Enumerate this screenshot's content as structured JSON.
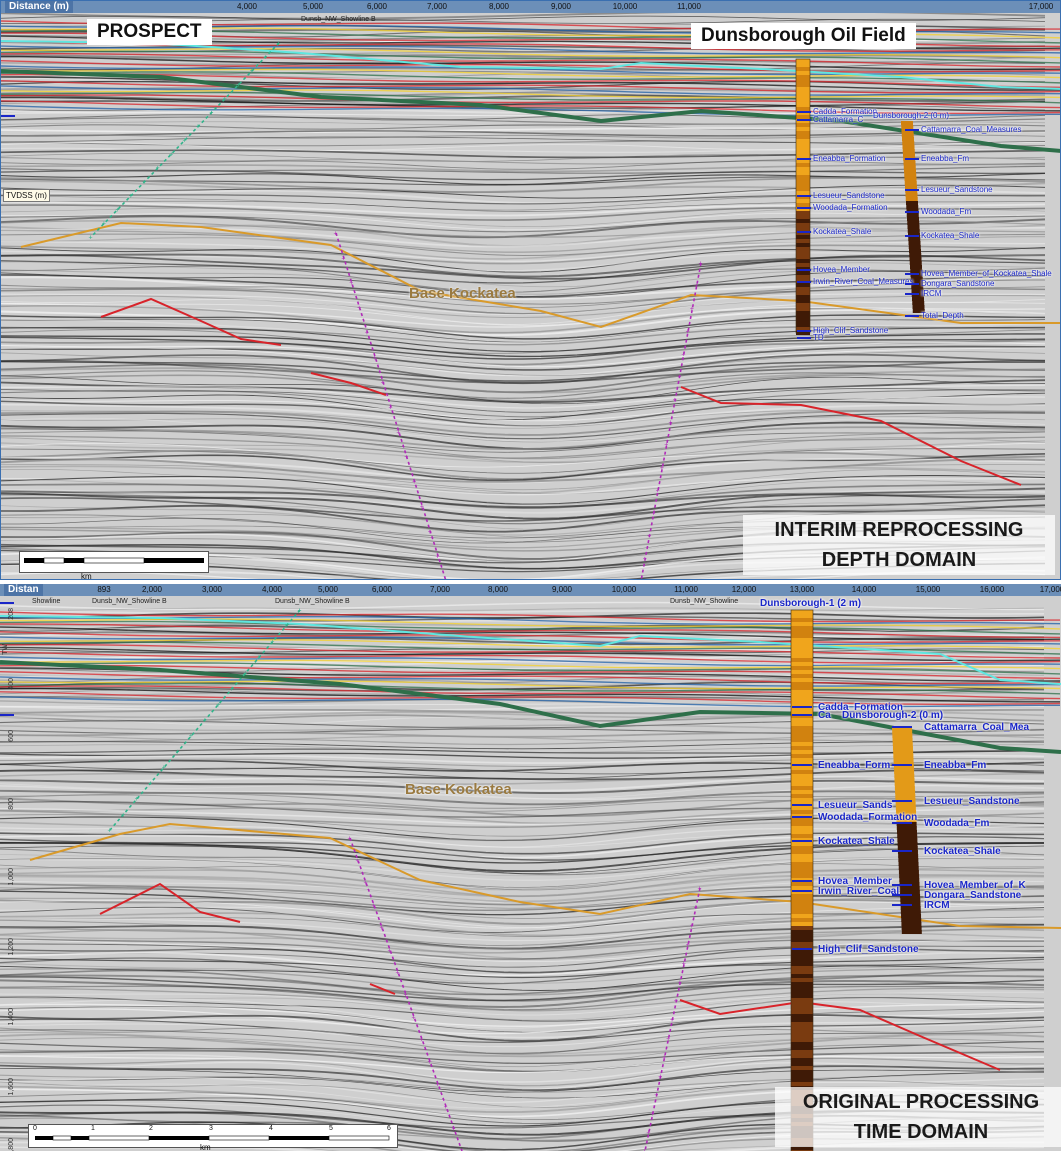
{
  "top": {
    "distance_label": "Distance (m)",
    "ticks": [
      "4,000",
      "5,000",
      "6,000",
      "7,000",
      "8,000",
      "9,000",
      "10,000",
      "11,000",
      "17,000"
    ],
    "tick_labels_header": [
      "Dunsb_NW_Showline B"
    ],
    "tvdss_label": "TVDSS (m)",
    "callout_left": "PROSPECT",
    "callout_right": "Dunsborough Oil Field",
    "horizon_label": "Base Kockatea",
    "title_line1": "INTERIM REPROCESSING",
    "title_line2": "DEPTH DOMAIN",
    "scale_unit": "km",
    "well_name": "Dunsborough-2 (0 m)",
    "well1_tops": [
      "Cadda_Formation",
      "Cattamarra_C",
      "Eneabba_Formation",
      "Lesueur_Sandstone",
      "Woodada_Formation",
      "Kockatea_Shale",
      "Hovea_Member",
      "Irwin_River_Coal_Measures",
      "High_Clif_Sandstone",
      "TD"
    ],
    "well2_tops": [
      "Cattamarra_Coal_Measures",
      "Eneabba_Fm",
      "Lesueur_Sandstone",
      "Woodada_Fm",
      "Kockatea_Shale",
      "Hovea_Member_of_Kockatea_Shale",
      "Dongara_Sandstone",
      "IRCM",
      "Total_Depth"
    ]
  },
  "bottom": {
    "distance_label": "Distan",
    "ticks": [
      "893",
      "2,000",
      "3,000",
      "4,000",
      "5,000",
      "6,000",
      "7,000",
      "8,000",
      "9,000",
      "10,000",
      "11,000",
      "12,000",
      "13,000",
      "14,000",
      "15,000",
      "16,000",
      "17,000"
    ],
    "header_line": [
      "Showline",
      "Dunsb_NW_Showline B",
      "Dunsb_NW_Showline B",
      "Dunsb_NW_Showline"
    ],
    "twt_ticks": [
      "208",
      "400",
      "600",
      "800",
      "1,000",
      "1,200",
      "1,400",
      "1,600",
      "1,800"
    ],
    "twt_label": "TW",
    "horizon_label": "Base Kockatea",
    "title_line1": "ORIGINAL PROCESSING",
    "title_line2": "TIME DOMAIN",
    "scale_unit": "km",
    "scale_ticks": [
      "0",
      "1",
      "2",
      "3",
      "4",
      "5",
      "6"
    ],
    "well1_name": "Dunsborough-1 (2 m)",
    "well2_name": "Dunsborough-2 (0 m)",
    "well1_tops": [
      "Cadda_Formation",
      "Ca",
      "Eneabba_Form",
      "Lesueur_Sands",
      "Woodada_Formation",
      "Kockatea_Shale",
      "Hovea_Member",
      "Irwin_River_Coal",
      "High_Clif_Sandstone"
    ],
    "well2_tops": [
      "Cattamarra_Coal_Mea",
      "Eneabba_Fm",
      "Lesueur_Sandstone",
      "Woodada_Fm",
      "Kockatea_Shale",
      "Hovea_Member_of_K",
      "Dongara_Sandstone",
      "IRCM"
    ]
  },
  "colors": {
    "fault": "#b02ab8",
    "green_horizon": "#2e6f4a",
    "cyan_horizon": "#5fe6e0",
    "orange_horizon": "#d99a2a",
    "red_horizon": "#d8232a",
    "well_column": "#e39a18"
  }
}
